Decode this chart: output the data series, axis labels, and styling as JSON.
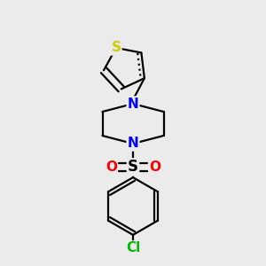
{
  "bg_color": "#ebebeb",
  "bond_color": "#000000",
  "bond_width": 1.6,
  "atom_colors": {
    "S_thiophene": "#cccc00",
    "N": "#0000ff",
    "S_sulfonyl": "#000000",
    "O": "#ff0000",
    "Cl": "#00bb00"
  }
}
